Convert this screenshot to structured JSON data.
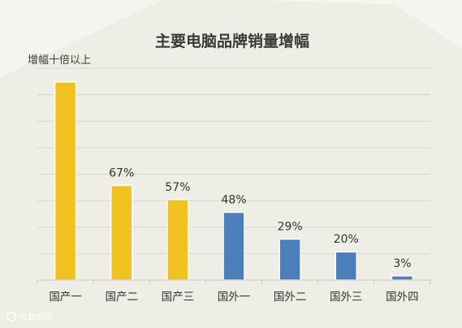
{
  "chart_data": {
    "type": "bar",
    "title": "主要电脑品牌销量增幅",
    "annotation": "增幅十倍以上",
    "categories": [
      "国产一",
      "国产二",
      "国产三",
      "国外一",
      "国外二",
      "国外三",
      "国外四"
    ],
    "values": [
      null,
      67,
      57,
      48,
      29,
      20,
      3
    ],
    "value_labels": [
      "",
      "67%",
      "57%",
      "48%",
      "29%",
      "20%",
      "3%"
    ],
    "ylim": [
      0,
      150
    ],
    "grid": true,
    "colors": {
      "domestic": "#f0c21f",
      "foreign": "#4d7fbd",
      "grid": "#d6d6d0",
      "background": "#efeee6"
    },
    "bar_color_groups": [
      "domestic",
      "domestic",
      "domestic",
      "foreign",
      "foreign",
      "foreign",
      "foreign"
    ]
  },
  "watermark": "大数据观"
}
